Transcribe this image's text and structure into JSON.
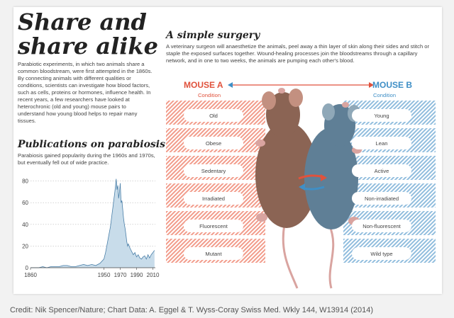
{
  "title": "Share and share alike",
  "intro": "Parabiotic experiments, in which two animals share a common bloodstream, were first attempted in the 1860s. By connecting animals with different qualities or conditions, scientists can investigate how blood factors, such as cells, proteins or hormones, influence health. In recent years, a few researchers have looked at heterochronic (old and young) mouse pairs to understand how young blood helps to repair many tissues.",
  "publications": {
    "title": "Publications on parabiosis",
    "description": "Parabiosis gained popularity during the 1960s and 1970s, but eventually fell out of wide practice."
  },
  "surgery": {
    "title": "A simple surgery",
    "description": "A veterinary surgeon will anaesthetize the animals, peel away a thin layer of skin along their sides and stitch or staple the exposed surfaces together. Wound-healing processes join the bloodstreams through a capillary network, and in one to two weeks, the animals are pumping each other's blood."
  },
  "mouse_a": {
    "name": "MOUSE A",
    "subtitle": "Condition",
    "conditions": [
      "Old",
      "Obese",
      "Sedentary",
      "Irradiated",
      "Fluorescent",
      "Mutant"
    ]
  },
  "mouse_b": {
    "name": "MOUSE B",
    "subtitle": "Condition",
    "conditions": [
      "Young",
      "Lean",
      "Active",
      "Non-irradiated",
      "Non-fluorescent",
      "Wild type"
    ]
  },
  "colors": {
    "mouse_a": "#e0523c",
    "mouse_b": "#3f8fc6",
    "bar_fill": "#c8dcea",
    "bar_stroke": "#4a7fa8"
  },
  "chart_data": {
    "type": "area",
    "x": [
      1860,
      1865,
      1870,
      1875,
      1880,
      1885,
      1890,
      1895,
      1900,
      1905,
      1910,
      1915,
      1920,
      1925,
      1930,
      1935,
      1940,
      1945,
      1950,
      1952,
      1954,
      1956,
      1958,
      1960,
      1961,
      1962,
      1963,
      1964,
      1965,
      1966,
      1967,
      1968,
      1969,
      1970,
      1971,
      1972,
      1973,
      1974,
      1975,
      1976,
      1977,
      1978,
      1979,
      1980,
      1982,
      1984,
      1986,
      1988,
      1990,
      1992,
      1994,
      1996,
      1998,
      2000,
      2002,
      2004,
      2006,
      2008,
      2010,
      2012
    ],
    "y": [
      0,
      0,
      0,
      1,
      0,
      1,
      1,
      1,
      2,
      2,
      1,
      1,
      2,
      3,
      2,
      3,
      2,
      4,
      8,
      14,
      22,
      30,
      38,
      50,
      56,
      62,
      68,
      74,
      82,
      72,
      76,
      64,
      70,
      78,
      60,
      62,
      54,
      46,
      40,
      36,
      30,
      24,
      20,
      22,
      18,
      15,
      12,
      14,
      10,
      12,
      9,
      8,
      10,
      11,
      8,
      12,
      9,
      12,
      14,
      16
    ],
    "xticks": [
      1860,
      1950,
      1970,
      1990,
      2010
    ],
    "yticks": [
      0,
      20,
      40,
      60,
      80
    ],
    "xlim": [
      1860,
      2013
    ],
    "ylim": [
      0,
      85
    ]
  }
}
